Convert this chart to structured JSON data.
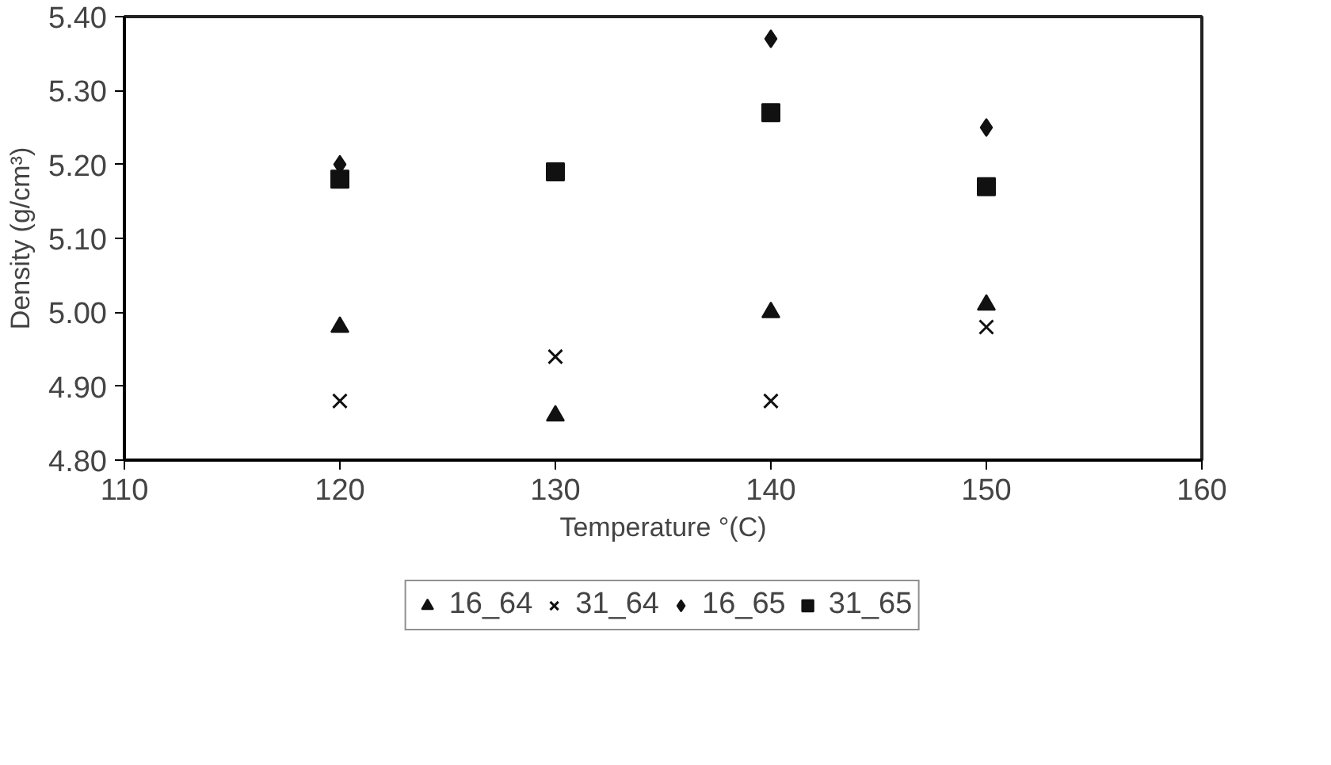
{
  "chart_data": {
    "type": "scatter",
    "xlabel": "Temperature °(C)",
    "ylabel": "Density (g/cm³)",
    "x": [
      120,
      130,
      140,
      150
    ],
    "series": [
      {
        "name": "16_64",
        "color": "#111111",
        "marker": "triangle",
        "values": [
          4.98,
          4.86,
          5.0,
          5.01
        ]
      },
      {
        "name": "31_64",
        "color": "#111111",
        "marker": "cross",
        "values": [
          4.88,
          4.94,
          4.88,
          4.98
        ]
      },
      {
        "name": "16_65",
        "color": "#111111",
        "marker": "diamond",
        "values": [
          5.2,
          null,
          5.37,
          5.25
        ]
      },
      {
        "name": "31_65",
        "color": "#111111",
        "marker": "square",
        "values": [
          5.18,
          5.19,
          5.27,
          5.17
        ]
      }
    ],
    "xlim": [
      110,
      160
    ],
    "xticks": [
      110,
      120,
      130,
      140,
      150,
      160
    ],
    "ylim": [
      4.8,
      5.4
    ],
    "yticks": [
      {
        "value": 4.8,
        "label": "4.80"
      },
      {
        "value": 4.9,
        "label": "4.90"
      },
      {
        "value": 5.0,
        "label": "5.00"
      },
      {
        "value": 5.1,
        "label": "5.10"
      },
      {
        "value": 5.2,
        "label": "5.20"
      },
      {
        "value": 5.3,
        "label": "5.30"
      },
      {
        "value": 5.4,
        "label": "5.40"
      }
    ],
    "grid": false,
    "legend": "bottom"
  }
}
